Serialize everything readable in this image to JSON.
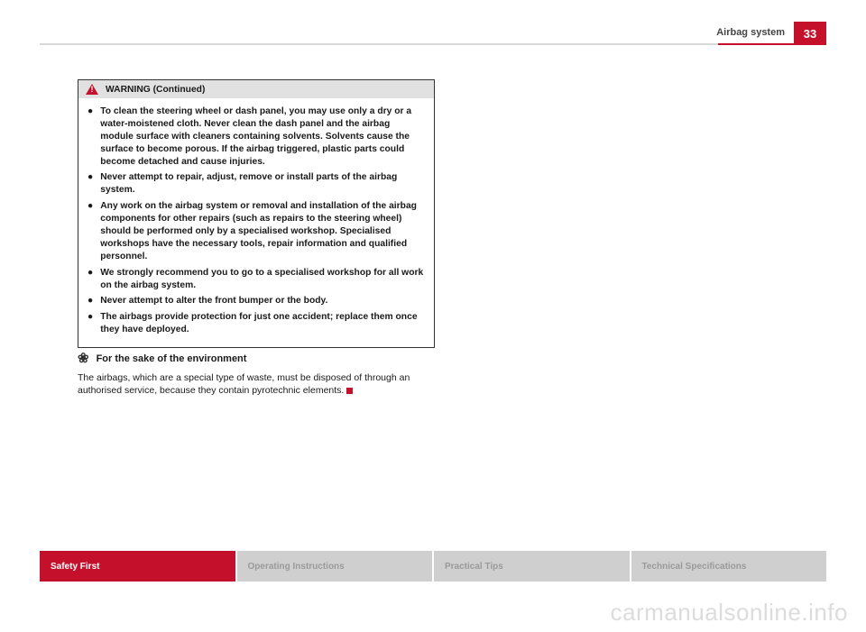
{
  "header": {
    "section_title": "Airbag system",
    "page_number": "33"
  },
  "warning": {
    "title": "WARNING (Continued)",
    "bullets": [
      "To clean the steering wheel or dash panel, you may use only a dry or a water-moistened cloth. Never clean the dash panel and the airbag module surface with cleaners containing solvents. Solvents cause the surface to become porous. If the airbag triggered, plastic parts could become detached and cause injuries.",
      "Never attempt to repair, adjust, remove or install parts of the airbag system.",
      "Any work on the airbag system or removal and installation of the airbag components for other repairs (such as repairs to the steering wheel) should be performed only by a specialised workshop. Specialised workshops have the necessary tools, repair information and qualified personnel.",
      "We strongly recommend you to go to a specialised workshop for all work on the airbag system.",
      "Never attempt to alter the front bumper or the body.",
      "The airbags provide protection for just one accident; replace them once they have deployed."
    ]
  },
  "environment": {
    "heading": "For the sake of the environment",
    "body": "The airbags, which are a special type of waste, must be disposed of through an authorised service, because they contain pyrotechnic elements."
  },
  "footer_tabs": [
    {
      "label": "Safety First",
      "active": true
    },
    {
      "label": "Operating Instructions",
      "active": false
    },
    {
      "label": "Practical Tips",
      "active": false
    },
    {
      "label": "Technical Specifications",
      "active": false
    }
  ],
  "watermark": "carmanualsonline.info",
  "colors": {
    "brand_red": "#c5102c",
    "tab_gray": "#cfcfcf",
    "tab_text_gray": "#9a9a9a",
    "line_gray": "#d8d8d8",
    "warn_header_bg": "#e1e1e1",
    "watermark_gray": "#dcdcdc"
  }
}
